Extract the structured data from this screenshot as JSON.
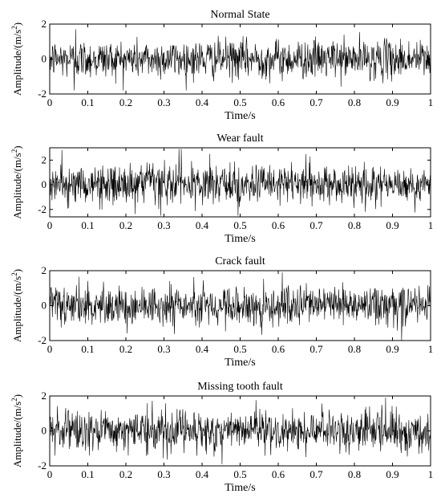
{
  "chart_data": [
    {
      "type": "line",
      "title": "Normal State",
      "xlabel": "Time/s",
      "ylabel": "Amplitude/(m/s",
      "ylabel_sup": "2",
      "ylabel_end": ")",
      "xlim": [
        0,
        1
      ],
      "ylim": [
        -2,
        2
      ],
      "xticks": [
        "0",
        "0.1",
        "0.2",
        "0.3",
        "0.4",
        "0.5",
        "0.6",
        "0.7",
        "0.8",
        "0.9",
        "1"
      ],
      "yticks": [
        {
          "value": 2,
          "label": "2"
        },
        {
          "value": 0,
          "label": "0"
        },
        {
          "value": -2,
          "label": "-2"
        }
      ],
      "series": [
        {
          "amplitude": 0.55,
          "peak_min": -1.8,
          "peak_max": 1.7,
          "samples": 1000
        }
      ],
      "grid": false
    },
    {
      "type": "line",
      "title": "Wear fault",
      "xlabel": "Time/s",
      "ylabel": "Amplitude/(m/s",
      "ylabel_sup": "2",
      "ylabel_end": ")",
      "xlim": [
        0,
        1
      ],
      "ylim": [
        -2.6,
        3
      ],
      "xticks": [
        "0",
        "0.1",
        "0.2",
        "0.3",
        "0.4",
        "0.5",
        "0.6",
        "0.7",
        "0.8",
        "0.9",
        "1"
      ],
      "yticks": [
        {
          "value": 2,
          "label": "2"
        },
        {
          "value": 0,
          "label": "0"
        },
        {
          "value": -2,
          "label": "-2"
        }
      ],
      "series": [
        {
          "amplitude": 0.8,
          "peak_min": -2.5,
          "peak_max": 2.9,
          "samples": 1000
        }
      ],
      "grid": false
    },
    {
      "type": "line",
      "title": "Crack fault",
      "xlabel": "Time/s",
      "ylabel": "Amplitude/(m/s",
      "ylabel_sup": "2",
      "ylabel_end": ")",
      "xlim": [
        0,
        1
      ],
      "ylim": [
        -2,
        2
      ],
      "xticks": [
        "0",
        "0.1",
        "0.2",
        "0.3",
        "0.4",
        "0.5",
        "0.6",
        "0.7",
        "0.8",
        "0.9",
        "1"
      ],
      "yticks": [
        {
          "value": 2,
          "label": "2"
        },
        {
          "value": 0,
          "label": "0"
        },
        {
          "value": -2,
          "label": "-2"
        }
      ],
      "series": [
        {
          "amplitude": 0.55,
          "peak_min": -2.0,
          "peak_max": 1.9,
          "samples": 1000
        }
      ],
      "grid": false
    },
    {
      "type": "line",
      "title": "Missing tooth fault",
      "xlabel": "Time/s",
      "ylabel": "Amplitude/(m/s",
      "ylabel_sup": "2",
      "ylabel_end": ")",
      "xlim": [
        0,
        1
      ],
      "ylim": [
        -2,
        2
      ],
      "xticks": [
        "0",
        "0.1",
        "0.2",
        "0.3",
        "0.4",
        "0.5",
        "0.6",
        "0.7",
        "0.8",
        "0.9",
        "1"
      ],
      "yticks": [
        {
          "value": 2,
          "label": "2"
        },
        {
          "value": 0,
          "label": "0"
        },
        {
          "value": -2,
          "label": "-2"
        }
      ],
      "series": [
        {
          "amplitude": 0.6,
          "peak_min": -1.9,
          "peak_max": 1.9,
          "samples": 1000
        }
      ],
      "grid": false
    }
  ]
}
